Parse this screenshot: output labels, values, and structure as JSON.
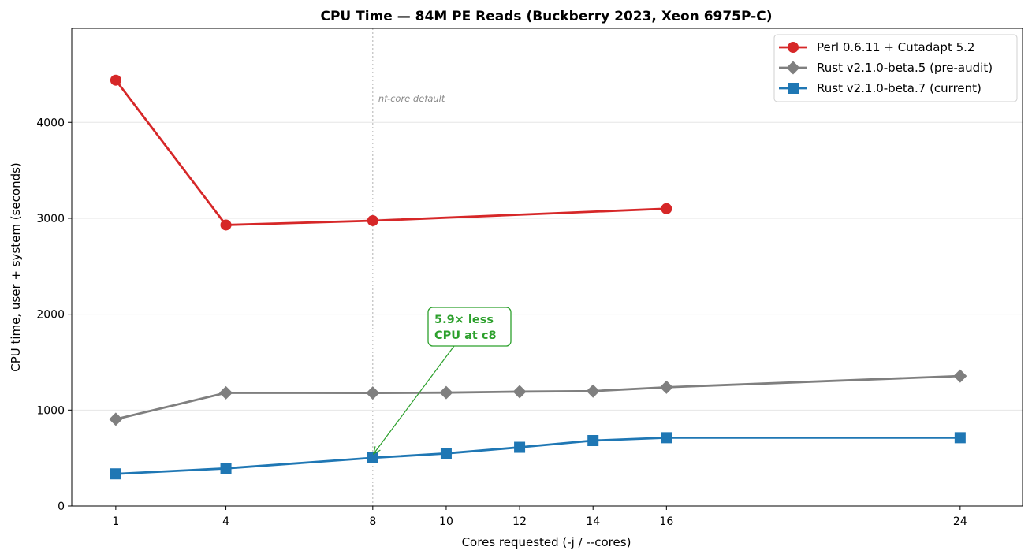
{
  "chart_data": {
    "type": "line",
    "title": "CPU Time — 84M PE Reads (Buckberry 2023, Xeon 6975P-C)",
    "xlabel": "Cores requested  (-j  /  --cores)",
    "ylabel": "CPU time, user + system  (seconds)",
    "x_ticks": [
      1,
      4,
      8,
      10,
      12,
      14,
      16,
      24
    ],
    "y_ticks": [
      0,
      1000,
      2000,
      3000,
      4000
    ],
    "xlim": [
      -0.2,
      25.7
    ],
    "ylim": [
      0,
      4980
    ],
    "grid": "y",
    "legend_position": "top-right",
    "vertical_marker": {
      "x": 8,
      "label": "nf-core default"
    },
    "series": [
      {
        "name": "Perl 0.6.11 + Cutadapt 5.2",
        "color": "#d62728",
        "marker": "circle",
        "x": [
          1,
          4,
          8,
          16
        ],
        "y": [
          4440,
          2930,
          2975,
          3100
        ]
      },
      {
        "name": "Rust v2.1.0-beta.5 (pre-audit)",
        "color": "#7f7f7f",
        "marker": "diamond",
        "x": [
          1,
          4,
          8,
          10,
          12,
          14,
          16,
          24
        ],
        "y": [
          905,
          1180,
          1178,
          1182,
          1192,
          1198,
          1238,
          1355
        ]
      },
      {
        "name": "Rust v2.1.0-beta.7 (current)",
        "color": "#1f77b4",
        "marker": "square",
        "x": [
          1,
          4,
          8,
          10,
          12,
          14,
          16,
          24
        ],
        "y": [
          335,
          392,
          502,
          548,
          612,
          682,
          712,
          712
        ]
      }
    ],
    "annotation": {
      "lines": [
        "5.9× less",
        "CPU at c8"
      ],
      "color": "#2ca02c",
      "points_to": {
        "x": 8,
        "y": 502
      }
    }
  }
}
